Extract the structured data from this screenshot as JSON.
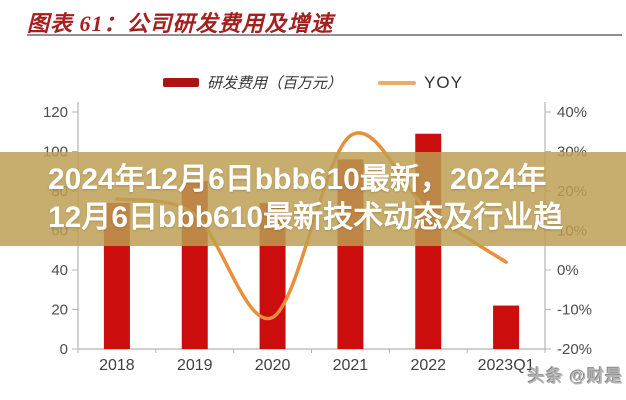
{
  "header": {
    "title": "图表 61：公司研发费用及增速",
    "title_color": "#a3201e"
  },
  "legend": {
    "bar_label": "研发费用（百万元）",
    "bar_color": "#ad1313",
    "line_label": "YOY",
    "line_color": "#ecab67"
  },
  "overlay": {
    "line1": "2024年12月6日bbb610最新，2024年",
    "line2": "12月6日bbb610最新技术动态及行业趋",
    "background": "rgba(188,159,82,0.84)",
    "text_color": "#ffffff"
  },
  "watermark": {
    "text": "头条 @财是"
  },
  "chart_data": {
    "type": "bar",
    "subtype": "bar+line-combo",
    "categories": [
      "2018",
      "2019",
      "2020",
      "2021",
      "2022",
      "2023Q1"
    ],
    "series": [
      {
        "name": "研发费用（百万元）",
        "type": "bar",
        "axis": "left",
        "color": "#cb0d0d",
        "values": [
          74,
          85,
          74,
          96,
          109,
          22
        ]
      },
      {
        "name": "YOY",
        "type": "line",
        "axis": "right",
        "color": "#e98e3a",
        "values_pct": [
          18,
          14,
          -12,
          34,
          15,
          2
        ],
        "points_hidden_behind_overlay_estimated": [
          "2018",
          "2019",
          "2022"
        ]
      }
    ],
    "left_axis": {
      "ticks": [
        120,
        100,
        80,
        60,
        40,
        20,
        0
      ],
      "labels": [
        "120",
        "100",
        "80",
        "60",
        "40",
        "20",
        "0"
      ],
      "range": [
        0,
        120
      ]
    },
    "right_axis": {
      "ticks": [
        40,
        30,
        20,
        10,
        0,
        -10,
        -20
      ],
      "labels": [
        "40%",
        "30%",
        "20%",
        "10%",
        "0%",
        "-10%",
        "-20%"
      ],
      "range": [
        -20,
        40
      ]
    },
    "grid": "off",
    "legend_position": "top-center",
    "axis_text_color": "#4d4d4d",
    "axis_line_color": "#b4b4b4"
  }
}
